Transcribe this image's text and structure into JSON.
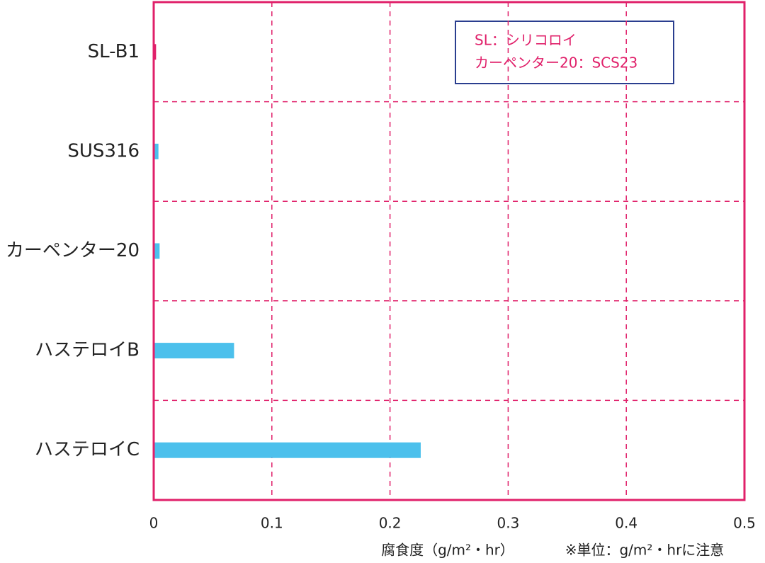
{
  "chart_data": {
    "type": "bar",
    "orientation": "horizontal",
    "categories": [
      "SL-B1",
      "SUS316",
      "カーペンター20",
      "ハステロイB",
      "ハステロイC"
    ],
    "values": [
      0.002,
      0.004,
      0.005,
      0.068,
      0.226
    ],
    "colors": [
      "#e0206a",
      "#4cc0ec",
      "#4cc0ec",
      "#4cc0ec",
      "#4cc0ec"
    ],
    "xlim": [
      0,
      0.5
    ],
    "xticks": [
      0,
      0.1,
      0.2,
      0.3,
      0.4,
      0.5
    ],
    "grid": true,
    "xlabel": "腐食度（g/m²・hr）",
    "note": "※単位：g/m²・hrに注意",
    "annotations": [
      "SL：シリコロイ",
      "カーペンター20：SCS23"
    ]
  }
}
